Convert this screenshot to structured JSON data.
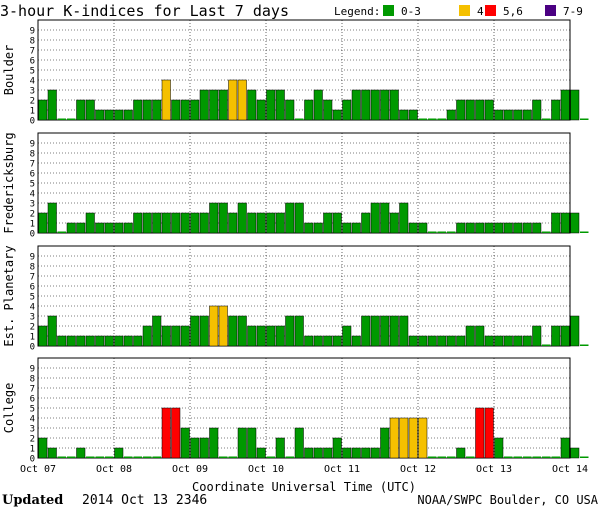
{
  "title": "3-hour K-indices for Last 7 days",
  "legend": {
    "label": "Legend:",
    "items": [
      {
        "label": "0-3",
        "color": "#009900"
      },
      {
        "label": "4",
        "color": "#f5c000"
      },
      {
        "label": "5,6",
        "color": "#ff0000"
      },
      {
        "label": "7-9",
        "color": "#4b0082"
      }
    ]
  },
  "xlabel": "Coordinate Universal Time (UTC)",
  "footer": {
    "updated_label": "Updated",
    "updated_value": "2014 Oct 13 2346",
    "source": "NOAA/SWPC Boulder, CO USA"
  },
  "chart_data": [
    {
      "type": "bar",
      "ylabel": "Boulder",
      "ylim": [
        0,
        9
      ],
      "yticks": [
        "0",
        "1",
        "2",
        "3",
        "4",
        "5",
        "6",
        "7",
        "8",
        "9"
      ],
      "xticks": [
        "Oct 07",
        "Oct 08",
        "Oct 09",
        "Oct 10",
        "Oct 11",
        "Oct 12",
        "Oct 13",
        "Oct 14"
      ],
      "values": [
        2,
        3,
        0,
        0,
        2,
        2,
        1,
        1,
        1,
        1,
        2,
        2,
        2,
        4,
        2,
        2,
        2,
        3,
        3,
        3,
        4,
        4,
        3,
        2,
        3,
        3,
        2,
        0,
        2,
        3,
        2,
        1,
        2,
        3,
        3,
        3,
        3,
        3,
        1,
        1,
        0,
        0,
        0,
        1,
        2,
        2,
        2,
        2,
        1,
        1,
        1,
        1,
        2,
        0,
        2,
        3,
        3,
        0
      ]
    },
    {
      "type": "bar",
      "ylabel": "Fredericksburg",
      "ylim": [
        0,
        9
      ],
      "yticks": [
        "0",
        "1",
        "2",
        "3",
        "4",
        "5",
        "6",
        "7",
        "8",
        "9"
      ],
      "xticks": [
        "Oct 07",
        "Oct 08",
        "Oct 09",
        "Oct 10",
        "Oct 11",
        "Oct 12",
        "Oct 13",
        "Oct 14"
      ],
      "values": [
        2,
        3,
        0,
        1,
        1,
        2,
        1,
        1,
        1,
        1,
        2,
        2,
        2,
        2,
        2,
        2,
        2,
        2,
        3,
        3,
        2,
        3,
        2,
        2,
        2,
        2,
        3,
        3,
        1,
        1,
        2,
        2,
        1,
        1,
        2,
        3,
        3,
        2,
        3,
        1,
        1,
        0,
        0,
        0,
        1,
        1,
        1,
        1,
        1,
        1,
        1,
        1,
        1,
        0,
        2,
        2,
        2,
        0
      ]
    },
    {
      "type": "bar",
      "ylabel": "Est. Planetary",
      "ylim": [
        0,
        9
      ],
      "yticks": [
        "0",
        "1",
        "2",
        "3",
        "4",
        "5",
        "6",
        "7",
        "8",
        "9"
      ],
      "xticks": [
        "Oct 07",
        "Oct 08",
        "Oct 09",
        "Oct 10",
        "Oct 11",
        "Oct 12",
        "Oct 13",
        "Oct 14"
      ],
      "values": [
        2,
        3,
        1,
        1,
        1,
        1,
        1,
        1,
        1,
        1,
        1,
        2,
        3,
        2,
        2,
        2,
        3,
        3,
        4,
        4,
        3,
        3,
        2,
        2,
        2,
        2,
        3,
        3,
        1,
        1,
        1,
        1,
        2,
        1,
        3,
        3,
        3,
        3,
        3,
        1,
        1,
        1,
        1,
        1,
        1,
        2,
        2,
        1,
        1,
        1,
        1,
        1,
        2,
        0,
        2,
        2,
        3,
        0
      ]
    },
    {
      "type": "bar",
      "ylabel": "College",
      "ylim": [
        0,
        9
      ],
      "yticks": [
        "0",
        "1",
        "2",
        "3",
        "4",
        "5",
        "6",
        "7",
        "8",
        "9"
      ],
      "xticks": [
        "Oct 07",
        "Oct 08",
        "Oct 09",
        "Oct 10",
        "Oct 11",
        "Oct 12",
        "Oct 13",
        "Oct 14"
      ],
      "values": [
        2,
        1,
        0,
        0,
        1,
        0,
        0,
        0,
        1,
        0,
        0,
        0,
        0,
        5,
        5,
        3,
        2,
        2,
        3,
        0,
        0,
        3,
        3,
        1,
        0,
        2,
        0,
        3,
        1,
        1,
        1,
        2,
        1,
        1,
        1,
        1,
        3,
        4,
        4,
        4,
        4,
        0,
        0,
        0,
        1,
        0,
        5,
        5,
        2,
        0,
        0,
        0,
        0,
        0,
        0,
        2,
        1,
        0
      ]
    }
  ]
}
